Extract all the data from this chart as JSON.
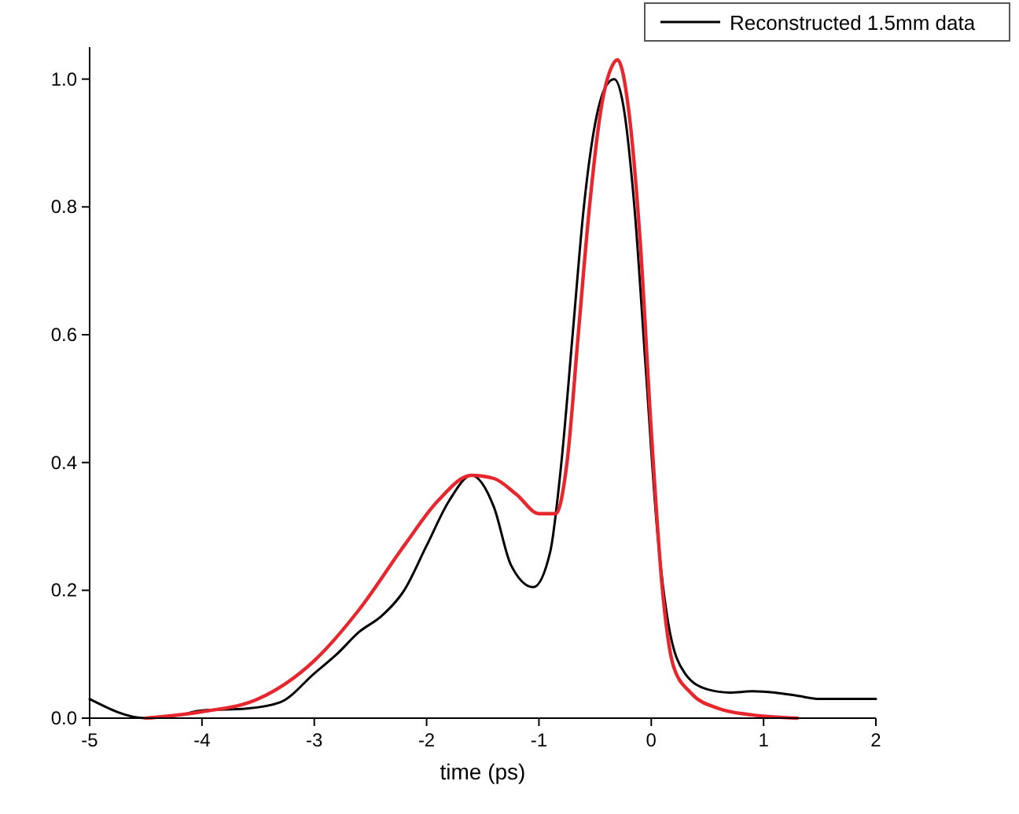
{
  "chart_data": {
    "type": "line",
    "xlabel": "time (ps)",
    "xlim": [
      -5,
      2
    ],
    "xticks": [
      -5,
      -4,
      -3,
      -2,
      -1,
      0,
      1,
      2
    ],
    "ylim": [
      0,
      1.05
    ],
    "yticks": [
      {
        "value": 0,
        "label": "0.0"
      },
      0.2,
      0.4,
      0.6,
      0.8,
      {
        "value": 1,
        "label": "1.0"
      }
    ],
    "legend": "top right",
    "grid": false,
    "series": [
      {
        "name": "Reconstructed 1.5mm data",
        "color": "#000000",
        "x": [
          -5,
          -4.5,
          -4.2,
          -4,
          -3.6,
          -3.3,
          -3,
          -2.8,
          -2.6,
          -2.4,
          -2.2,
          -2,
          -1.8,
          -1.6,
          -1.4,
          -1.25,
          -1.05,
          -0.9,
          -0.8,
          -0.7,
          -0.6,
          -0.5,
          -0.4,
          -0.33,
          -0.25,
          -0.15,
          -0.05,
          0.05,
          0.15,
          0.3,
          0.5,
          0.7,
          0.9,
          1.1,
          1.3,
          1.5,
          2
        ],
        "values": [
          0.03,
          0,
          0.005,
          0.012,
          0.015,
          0.025,
          0.07,
          0.1,
          0.135,
          0.16,
          0.2,
          0.27,
          0.34,
          0.38,
          0.33,
          0.24,
          0.205,
          0.26,
          0.4,
          0.6,
          0.8,
          0.93,
          0.99,
          1,
          0.96,
          0.8,
          0.55,
          0.3,
          0.15,
          0.07,
          0.045,
          0.04,
          0.042,
          0.04,
          0.035,
          0.03,
          0.03
        ]
      },
      {
        "color": "#e8262e",
        "x": [
          -4.5,
          -4,
          -3.5,
          -3,
          -2.6,
          -2.2,
          -1.9,
          -1.6,
          -1.4,
          -1.2,
          -1,
          -0.85,
          -0.75,
          -0.65,
          -0.55,
          -0.45,
          -0.35,
          -0.3,
          -0.2,
          -0.1,
          0,
          0.1,
          0.2,
          0.35,
          0.6,
          0.9,
          1.3
        ],
        "values": [
          0,
          0.01,
          0.03,
          0.09,
          0.17,
          0.27,
          0.34,
          0.38,
          0.375,
          0.35,
          0.32,
          0.32,
          0.4,
          0.6,
          0.8,
          0.95,
          1.02,
          1.03,
          0.95,
          0.75,
          0.45,
          0.2,
          0.08,
          0.04,
          0.015,
          0.005,
          0
        ]
      }
    ]
  }
}
